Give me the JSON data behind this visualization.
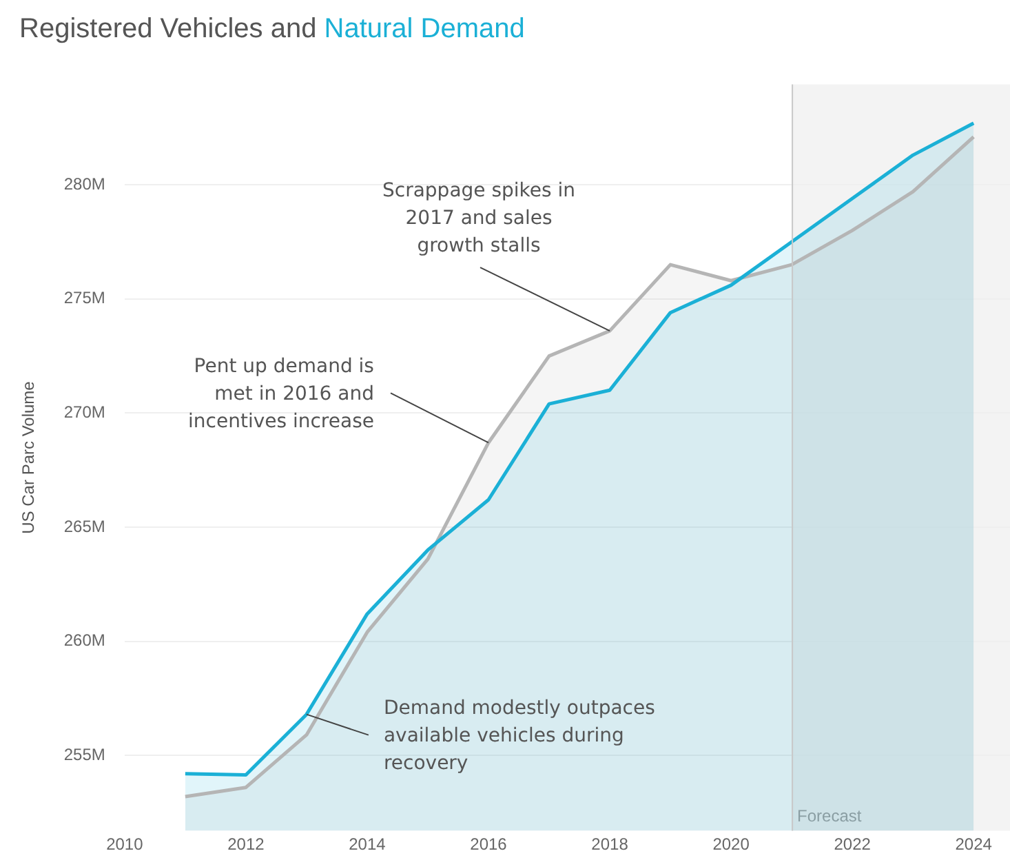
{
  "chart_data": {
    "type": "area",
    "title": "Registered Vehicles and",
    "ylabel": "US Car Parc Volume",
    "x": [
      2011,
      2012,
      2013,
      2014,
      2015,
      2016,
      2017,
      2018,
      2019,
      2020,
      2021,
      2022,
      2023,
      2024
    ],
    "series": [
      {
        "color": "#b5b5b5",
        "values": [
          253.2,
          253.6,
          255.9,
          260.4,
          263.6,
          268.7,
          272.5,
          273.6,
          276.5,
          275.8,
          276.5,
          278.0,
          279.7,
          282.1
        ]
      },
      {
        "name": "Natural Demand",
        "color": "#1bb0d6",
        "values": [
          254.2,
          254.15,
          256.8,
          261.2,
          264.0,
          266.2,
          270.4,
          271.0,
          274.4,
          275.6,
          277.5,
          279.4,
          281.3,
          282.7
        ]
      }
    ],
    "xlim": [
      2010,
      2024.6
    ],
    "xticks": [
      2010,
      2012,
      2014,
      2016,
      2018,
      2020,
      2022,
      2024
    ],
    "ylim": [
      251.7,
      284.4
    ],
    "yticks": [
      {
        "value": 255,
        "label": "255M"
      },
      {
        "value": 260,
        "label": "260M"
      },
      {
        "value": 265,
        "label": "265M"
      },
      {
        "value": 270,
        "label": "270M"
      },
      {
        "value": 275,
        "label": "275M"
      },
      {
        "value": 280,
        "label": "280M"
      }
    ],
    "grid": "y",
    "legend": false,
    "bands": [
      {
        "axis": "x",
        "from": 2021,
        "to": 2024.6,
        "label": "Forecast",
        "color": "#f3f3f3"
      }
    ],
    "ref_lines": [
      {
        "axis": "x",
        "value": 2021,
        "color": "#c8c8c8"
      }
    ],
    "annotations": [
      {
        "text": "Scrappage spikes in 2017 and sales growth stalls",
        "x": 2018,
        "y": 273.6
      },
      {
        "text": "Pent up demand is met in 2016 and incentives increase",
        "x": 2016,
        "y": 268.7
      },
      {
        "text": "Demand modestly outpaces available vehicles during recovery",
        "x": 2013,
        "y": 256.8
      }
    ]
  }
}
